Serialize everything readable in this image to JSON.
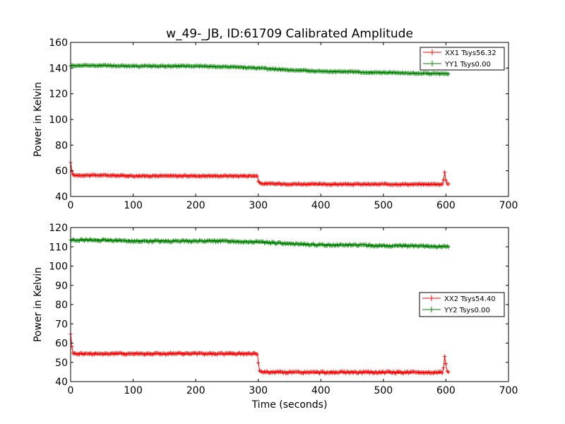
{
  "chart_data": [
    {
      "type": "line",
      "title": "w_49-_JB, ID:61709 Calibrated Amplitude",
      "xlabel": "",
      "ylabel": "Power in Kelvin",
      "xlim": [
        0,
        700
      ],
      "ylim": [
        40,
        160
      ],
      "xticks": [
        0,
        100,
        200,
        300,
        400,
        500,
        600,
        700
      ],
      "yticks": [
        40,
        60,
        80,
        100,
        120,
        140,
        160
      ],
      "grid": false,
      "legend_position": "top-right",
      "marker": "plus",
      "series": [
        {
          "name": "XX1 Tsys56.32",
          "color": "#ff0000",
          "x": [
            0,
            2,
            3,
            5,
            50,
            100,
            150,
            200,
            250,
            299,
            300,
            302,
            305,
            350,
            400,
            450,
            500,
            550,
            595,
            598,
            600,
            602,
            605
          ],
          "y": [
            66,
            60,
            57,
            56.5,
            56.5,
            56,
            56,
            56,
            56,
            56,
            52,
            50.5,
            50,
            49.7,
            49.5,
            49.5,
            49.5,
            49.5,
            49.5,
            59,
            53,
            50,
            49.5
          ]
        },
        {
          "name": "YY1 Tsys0.00",
          "color": "#008000",
          "x": [
            0,
            50,
            100,
            150,
            200,
            250,
            300,
            350,
            400,
            450,
            500,
            550,
            600,
            605
          ],
          "y": [
            142,
            142,
            141.5,
            141.5,
            141.5,
            141,
            140,
            138.5,
            137.5,
            137,
            136.5,
            136,
            135.5,
            135.5
          ]
        }
      ]
    },
    {
      "type": "line",
      "title": "",
      "xlabel": "Time (seconds)",
      "ylabel": "Power in Kelvin",
      "xlim": [
        0,
        700
      ],
      "ylim": [
        40,
        120
      ],
      "xticks": [
        0,
        100,
        200,
        300,
        400,
        500,
        600,
        700
      ],
      "yticks": [
        40,
        50,
        60,
        70,
        80,
        90,
        100,
        110,
        120
      ],
      "grid": false,
      "legend_position": "center-right",
      "marker": "plus",
      "series": [
        {
          "name": "XX2 Tsys54.40",
          "color": "#ff0000",
          "x": [
            0,
            2,
            4,
            6,
            50,
            100,
            150,
            200,
            250,
            299,
            300,
            302,
            305,
            350,
            400,
            450,
            500,
            550,
            595,
            598,
            600,
            602,
            605
          ],
          "y": [
            65,
            58,
            55,
            54.5,
            54.5,
            54.5,
            54.5,
            54.5,
            54.5,
            54.5,
            50,
            46,
            45,
            44.8,
            44.8,
            44.8,
            44.8,
            44.8,
            44.8,
            53,
            49,
            45,
            44.8
          ]
        },
        {
          "name": "YY2 Tsys0.00",
          "color": "#008000",
          "x": [
            0,
            50,
            100,
            150,
            200,
            250,
            300,
            350,
            400,
            450,
            500,
            550,
            600,
            605
          ],
          "y": [
            113.5,
            113.5,
            113,
            113,
            113,
            113,
            112.5,
            111.5,
            111,
            111,
            110.5,
            110.5,
            110,
            110
          ]
        }
      ]
    }
  ]
}
